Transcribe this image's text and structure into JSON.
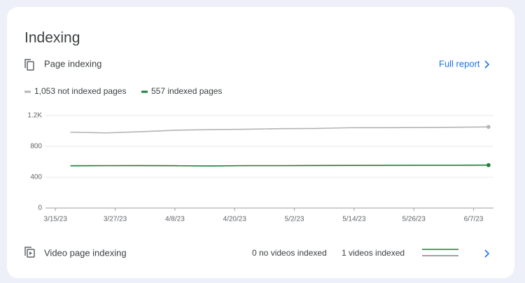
{
  "header": {
    "title": "Indexing",
    "section": "Page indexing",
    "link": "Full report"
  },
  "chart_data": {
    "type": "line",
    "x": [
      "3/18/23",
      "3/25/23",
      "4/1/23",
      "4/8/23",
      "4/15/23",
      "4/22/23",
      "4/29/23",
      "5/6/23",
      "5/13/23",
      "5/20/23",
      "5/27/23",
      "6/3/23",
      "6/10/23"
    ],
    "series": [
      {
        "name": "1,053 not indexed pages",
        "color": "#b4b4b4",
        "values": [
          985,
          975,
          990,
          1010,
          1018,
          1022,
          1030,
          1032,
          1042,
          1043,
          1045,
          1048,
          1053
        ]
      },
      {
        "name": "557 indexed pages",
        "color": "#188038",
        "values": [
          548,
          550,
          551,
          549,
          546,
          550,
          550,
          552,
          553,
          554,
          555,
          555,
          557
        ]
      }
    ],
    "xlim": [
      "3/13/23",
      "6/11/23"
    ],
    "xticks": [
      "3/15/23",
      "3/27/23",
      "4/8/23",
      "4/20/23",
      "5/2/23",
      "5/14/23",
      "5/26/23",
      "6/7/23"
    ],
    "ylim": [
      0,
      1200
    ],
    "yticks": [
      0,
      400,
      800,
      {
        "value": 1200,
        "label": "1.2K"
      }
    ],
    "grid": true
  },
  "video": {
    "title": "Video page indexing",
    "not_indexed": "0 no videos indexed",
    "indexed": "1 videos indexed"
  }
}
